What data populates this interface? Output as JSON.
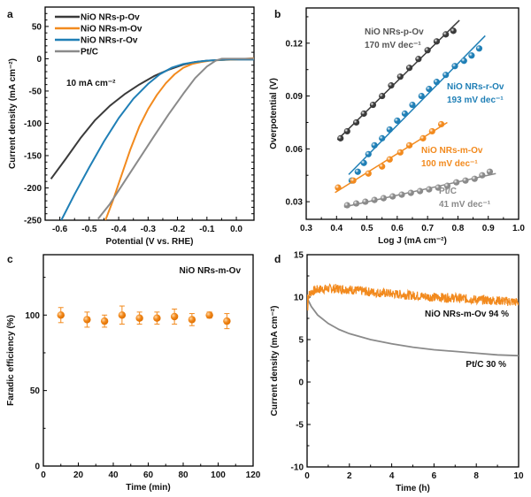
{
  "colors": {
    "p_ov": "#3a3a3a",
    "m_ov": "#f28a1e",
    "r_ov": "#1f7fb6",
    "ptc": "#8a8a8a",
    "axis": "#000000"
  },
  "chart_data": [
    {
      "panel": "a",
      "type": "line",
      "xlabel": "Potential (V vs. RHE)",
      "ylabel": "Current density (mA cm⁻²)",
      "xlim": [
        -0.65,
        0.06
      ],
      "ylim": [
        -250,
        80
      ],
      "xticks": [
        -0.6,
        -0.5,
        -0.4,
        -0.3,
        -0.2,
        -0.1,
        0.0
      ],
      "xtick_labels": [
        "-0.6",
        "-0.5",
        "-0.4",
        "-0.3",
        "-0.2",
        "-0.1",
        "0.0"
      ],
      "yticks": [
        50,
        0,
        -50,
        -100,
        -150,
        -200,
        -250
      ],
      "ytick_labels": [
        "50",
        "0",
        "-50",
        "-100",
        "-150",
        "-200",
        "-250"
      ],
      "legend_position": "top-left",
      "annotation": "10 mA cm⁻²",
      "series": [
        {
          "name": "NiO NRs-p-Ov",
          "color_key": "p_ov",
          "x": [
            -0.63,
            -0.58,
            -0.53,
            -0.48,
            -0.43,
            -0.38,
            -0.33,
            -0.28,
            -0.23,
            -0.18,
            -0.14,
            -0.1,
            -0.06,
            -0.02,
            0.02,
            0.06
          ],
          "y": [
            -186,
            -155,
            -123,
            -95,
            -73,
            -55,
            -40,
            -27,
            -17,
            -9,
            -5,
            -3,
            -2,
            -1,
            -1,
            -1
          ]
        },
        {
          "name": "NiO NRs-m-Ov",
          "color_key": "m_ov",
          "x": [
            -0.445,
            -0.42,
            -0.39,
            -0.36,
            -0.33,
            -0.3,
            -0.27,
            -0.24,
            -0.21,
            -0.18,
            -0.15,
            -0.12,
            -0.09,
            -0.05,
            0.0,
            0.06
          ],
          "y": [
            -250,
            -220,
            -180,
            -140,
            -105,
            -78,
            -56,
            -38,
            -24,
            -14,
            -8,
            -5,
            -3,
            -2,
            -1,
            1
          ]
        },
        {
          "name": "NiO NRs-r-Ov",
          "color_key": "r_ov",
          "x": [
            -0.595,
            -0.55,
            -0.5,
            -0.45,
            -0.4,
            -0.35,
            -0.3,
            -0.26,
            -0.22,
            -0.18,
            -0.14,
            -0.1,
            -0.06,
            -0.02,
            0.02,
            0.06
          ],
          "y": [
            -250,
            -210,
            -168,
            -128,
            -92,
            -62,
            -39,
            -24,
            -14,
            -8,
            -5,
            -3,
            -2,
            -1,
            -1,
            -1
          ]
        },
        {
          "name": "Pt/C",
          "color_key": "ptc",
          "x": [
            -0.47,
            -0.43,
            -0.38,
            -0.33,
            -0.28,
            -0.23,
            -0.18,
            -0.14,
            -0.1,
            -0.07,
            -0.05,
            -0.03,
            0.0,
            0.03,
            0.06
          ],
          "y": [
            -248,
            -225,
            -190,
            -155,
            -120,
            -86,
            -54,
            -30,
            -12,
            -3,
            0,
            0,
            0,
            0,
            0
          ]
        }
      ]
    },
    {
      "panel": "b",
      "type": "scatter",
      "xlabel": "Log J (mA cm⁻²)",
      "ylabel": "Overpotential (V)",
      "xlim": [
        0.3,
        1.0
      ],
      "ylim": [
        0.02,
        0.14
      ],
      "xticks": [
        0.3,
        0.4,
        0.5,
        0.6,
        0.7,
        0.8,
        0.9,
        1.0
      ],
      "xtick_labels": [
        "0.3",
        "0.4",
        "0.5",
        "0.6",
        "0.7",
        "0.8",
        "0.9",
        "1.0"
      ],
      "yticks": [
        0.03,
        0.06,
        0.09,
        0.12
      ],
      "ytick_labels": [
        "0.03",
        "0.06",
        "0.09",
        "0.12"
      ],
      "series": [
        {
          "name": "NiO NRs-p-Ov",
          "label": "NiO NRs-p-Ov",
          "slope_label": "170 mV dec⁻¹",
          "color_key": "p_ov",
          "x": [
            0.413,
            0.435,
            0.465,
            0.49,
            0.52,
            0.55,
            0.58,
            0.61,
            0.64,
            0.67,
            0.7,
            0.73,
            0.76,
            0.785
          ],
          "y": [
            0.066,
            0.07,
            0.075,
            0.08,
            0.085,
            0.09,
            0.096,
            0.101,
            0.106,
            0.111,
            0.116,
            0.121,
            0.125,
            0.127
          ]
        },
        {
          "name": "NiO NRs-r-Ov",
          "label": "NiO NRs-r-Ov",
          "slope_label": "193 mV dec⁻¹",
          "color_key": "r_ov",
          "x": [
            0.45,
            0.47,
            0.49,
            0.505,
            0.525,
            0.55,
            0.575,
            0.6,
            0.625,
            0.65,
            0.68,
            0.705,
            0.73,
            0.76,
            0.79,
            0.82,
            0.845,
            0.87
          ],
          "y": [
            0.042,
            0.047,
            0.052,
            0.057,
            0.062,
            0.066,
            0.071,
            0.076,
            0.08,
            0.085,
            0.09,
            0.094,
            0.098,
            0.102,
            0.107,
            0.11,
            0.113,
            0.117
          ]
        },
        {
          "name": "NiO NRs-m-Ov",
          "label": "NiO NRs-m-Ov",
          "slope_label": "100 mV dec⁻¹",
          "color_key": "m_ov",
          "x": [
            0.405,
            0.455,
            0.505,
            0.55,
            0.575,
            0.61,
            0.64,
            0.685,
            0.715,
            0.745
          ],
          "y": [
            0.038,
            0.042,
            0.046,
            0.05,
            0.054,
            0.058,
            0.062,
            0.066,
            0.07,
            0.074
          ]
        },
        {
          "name": "Pt/C",
          "label": "Pt/C",
          "slope_label": "41 mV dec⁻¹",
          "color_key": "ptc",
          "x": [
            0.435,
            0.465,
            0.495,
            0.525,
            0.555,
            0.585,
            0.615,
            0.645,
            0.675,
            0.705,
            0.735,
            0.765,
            0.795,
            0.825,
            0.855,
            0.88,
            0.905
          ],
          "y": [
            0.028,
            0.029,
            0.03,
            0.031,
            0.032,
            0.033,
            0.034,
            0.035,
            0.036,
            0.037,
            0.038,
            0.039,
            0.041,
            0.042,
            0.043,
            0.045,
            0.047
          ]
        }
      ]
    },
    {
      "panel": "c",
      "type": "scatter",
      "xlabel": "Time (min)",
      "ylabel": "Faradic efficiency (%)",
      "xlim": [
        0,
        120
      ],
      "ylim": [
        0,
        140
      ],
      "xticks": [
        0,
        20,
        40,
        60,
        80,
        100,
        120
      ],
      "xtick_labels": [
        "0",
        "20",
        "40",
        "60",
        "80",
        "100",
        "120"
      ],
      "yticks": [
        0,
        50,
        100
      ],
      "ytick_labels": [
        "0",
        "50",
        "100"
      ],
      "annotation": "NiO NRs-m-Ov",
      "series": [
        {
          "name": "NiO NRs-m-Ov",
          "color_key": "m_ov",
          "x": [
            10,
            25,
            35,
            45,
            55,
            65,
            75,
            85,
            95,
            105
          ],
          "y": [
            100,
            97,
            96,
            100,
            98,
            98,
            99,
            97,
            100,
            96
          ],
          "err": [
            5,
            5,
            4,
            6,
            4,
            4,
            5,
            4,
            2,
            5
          ]
        }
      ]
    },
    {
      "panel": "d",
      "type": "line",
      "xlabel": "Time (h)",
      "ylabel": "Current density (mA cm⁻²)",
      "xlim": [
        0,
        10
      ],
      "ylim": [
        -10,
        15
      ],
      "xticks": [
        0,
        2,
        4,
        6,
        8,
        10
      ],
      "xtick_labels": [
        "0",
        "2",
        "4",
        "6",
        "8",
        "10"
      ],
      "yticks": [
        -10,
        -5,
        0,
        5,
        10,
        15
      ],
      "ytick_labels": [
        "-10",
        "-5",
        "0",
        "5",
        "10",
        "15"
      ],
      "series": [
        {
          "name": "NiO NRs-m-Ov",
          "label": "NiO NRs-m-Ov  94 %",
          "color_key": "m_ov",
          "x": [
            0,
            0.2,
            0.5,
            1.0,
            1.5,
            2,
            3,
            4,
            5,
            6,
            7,
            8,
            9,
            10
          ],
          "y": [
            10.0,
            10.6,
            10.9,
            11.0,
            11.0,
            10.9,
            10.6,
            10.4,
            10.2,
            10.0,
            9.9,
            9.7,
            9.6,
            9.4
          ]
        },
        {
          "name": "Pt/C",
          "label": "Pt/C  30 %",
          "color_key": "ptc",
          "x": [
            0,
            0.2,
            0.5,
            1.0,
            1.5,
            2,
            3,
            4,
            5,
            6,
            7,
            8,
            9,
            10
          ],
          "y": [
            9.9,
            8.9,
            7.9,
            6.9,
            6.2,
            5.7,
            5.0,
            4.5,
            4.1,
            3.8,
            3.6,
            3.4,
            3.2,
            3.1
          ]
        }
      ]
    }
  ]
}
